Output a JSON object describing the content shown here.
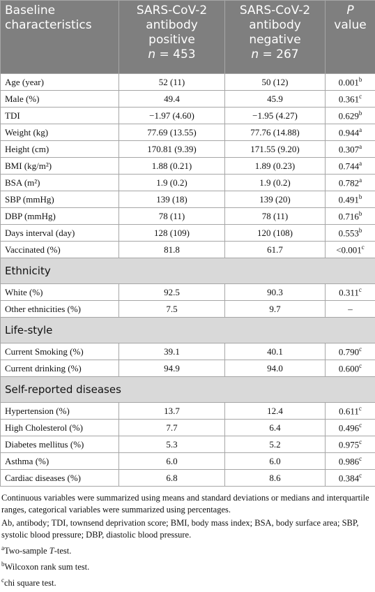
{
  "header": {
    "characteristic": "Baseline characteristics",
    "positive": {
      "label": "SARS-CoV-2 antibody positive",
      "n_symbol": "n",
      "n_text": "= 453"
    },
    "negative": {
      "label": "SARS-CoV-2 antibody negative",
      "n_symbol": "n",
      "n_text": "= 267"
    },
    "p": {
      "symbol": "P",
      "label": "value"
    }
  },
  "sections": [
    {
      "rows": [
        {
          "label": "Age (year)",
          "positive": "52 (11)",
          "negative": "50 (12)",
          "p": "0.001",
          "note": "b"
        },
        {
          "label": "Male (%)",
          "positive": "49.4",
          "negative": "45.9",
          "p": "0.361",
          "note": "c"
        },
        {
          "label": "TDI",
          "positive": "−1.97 (4.60)",
          "negative": "−1.95 (4.27)",
          "p": "0.629",
          "note": "b"
        },
        {
          "label": "Weight (kg)",
          "positive": "77.69 (13.55)",
          "negative": "77.76 (14.88)",
          "p": "0.944",
          "note": "a"
        },
        {
          "label": "Height (cm)",
          "positive": "170.81 (9.39)",
          "negative": "171.55 (9.20)",
          "p": "0.307",
          "note": "a"
        },
        {
          "label": "BMI (kg/m²)",
          "positive": "1.88 (0.21)",
          "negative": "1.89 (0.23)",
          "p": "0.744",
          "note": "a"
        },
        {
          "label": "BSA (m²)",
          "positive": "1.9 (0.2)",
          "negative": "1.9 (0.2)",
          "p": "0.782",
          "note": "a"
        },
        {
          "label": "SBP (mmHg)",
          "positive": "139 (18)",
          "negative": "139 (20)",
          "p": "0.491",
          "note": "b"
        },
        {
          "label": "DBP (mmHg)",
          "positive": "78 (11)",
          "negative": "78 (11)",
          "p": "0.716",
          "note": "b"
        },
        {
          "label": "Days interval (day)",
          "positive": "128 (109)",
          "negative": "120 (108)",
          "p": "0.553",
          "note": "b"
        },
        {
          "label": "Vaccinated (%)",
          "positive": "81.8",
          "negative": "61.7",
          "p": "<0.001",
          "note": "c"
        }
      ]
    },
    {
      "title": "Ethnicity",
      "rows": [
        {
          "label": "White (%)",
          "positive": "92.5",
          "negative": "90.3",
          "p": "0.311",
          "note": "c"
        },
        {
          "label": "Other ethnicities (%)",
          "positive": "7.5",
          "negative": "9.7",
          "p": "–"
        }
      ]
    },
    {
      "title": "Life-style",
      "rows": [
        {
          "label": "Current Smoking (%)",
          "positive": "39.1",
          "negative": "40.1",
          "p": "0.790",
          "note": "c"
        },
        {
          "label": "Current drinking (%)",
          "positive": "94.9",
          "negative": "94.0",
          "p": "0.600",
          "note": "c"
        }
      ]
    },
    {
      "title": "Self-reported diseases",
      "rows": [
        {
          "label": "Hypertension (%)",
          "positive": "13.7",
          "negative": "12.4",
          "p": "0.611",
          "note": "c"
        },
        {
          "label": "High Cholesterol (%)",
          "positive": "7.7",
          "negative": "6.4",
          "p": "0.496",
          "note": "c"
        },
        {
          "label": "Diabetes mellitus (%)",
          "positive": "5.3",
          "negative": "5.2",
          "p": "0.975",
          "note": "c"
        },
        {
          "label": "Asthma (%)",
          "positive": "6.0",
          "negative": "6.0",
          "p": "0.986",
          "note": "c"
        },
        {
          "label": "Cardiac diseases (%)",
          "positive": "6.8",
          "negative": "8.6",
          "p": "0.384",
          "note": "c"
        }
      ]
    }
  ],
  "footnotes": [
    {
      "text": "Continuous variables were summarized using means and standard deviations or medians and interquartile ranges, categorical variables were summarized using percentages."
    },
    {
      "text": "Ab, antibody; TDI, townsend deprivation score; BMI, body mass index; BSA, body surface area; SBP, systolic blood pressure; DBP, diastolic blood pressure."
    },
    {
      "mark": "a",
      "parts": [
        "Two-sample ",
        "T",
        "-test."
      ]
    },
    {
      "mark": "b",
      "text": "Wilcoxon rank sum test."
    },
    {
      "mark": "c",
      "text": "chi square test."
    }
  ]
}
